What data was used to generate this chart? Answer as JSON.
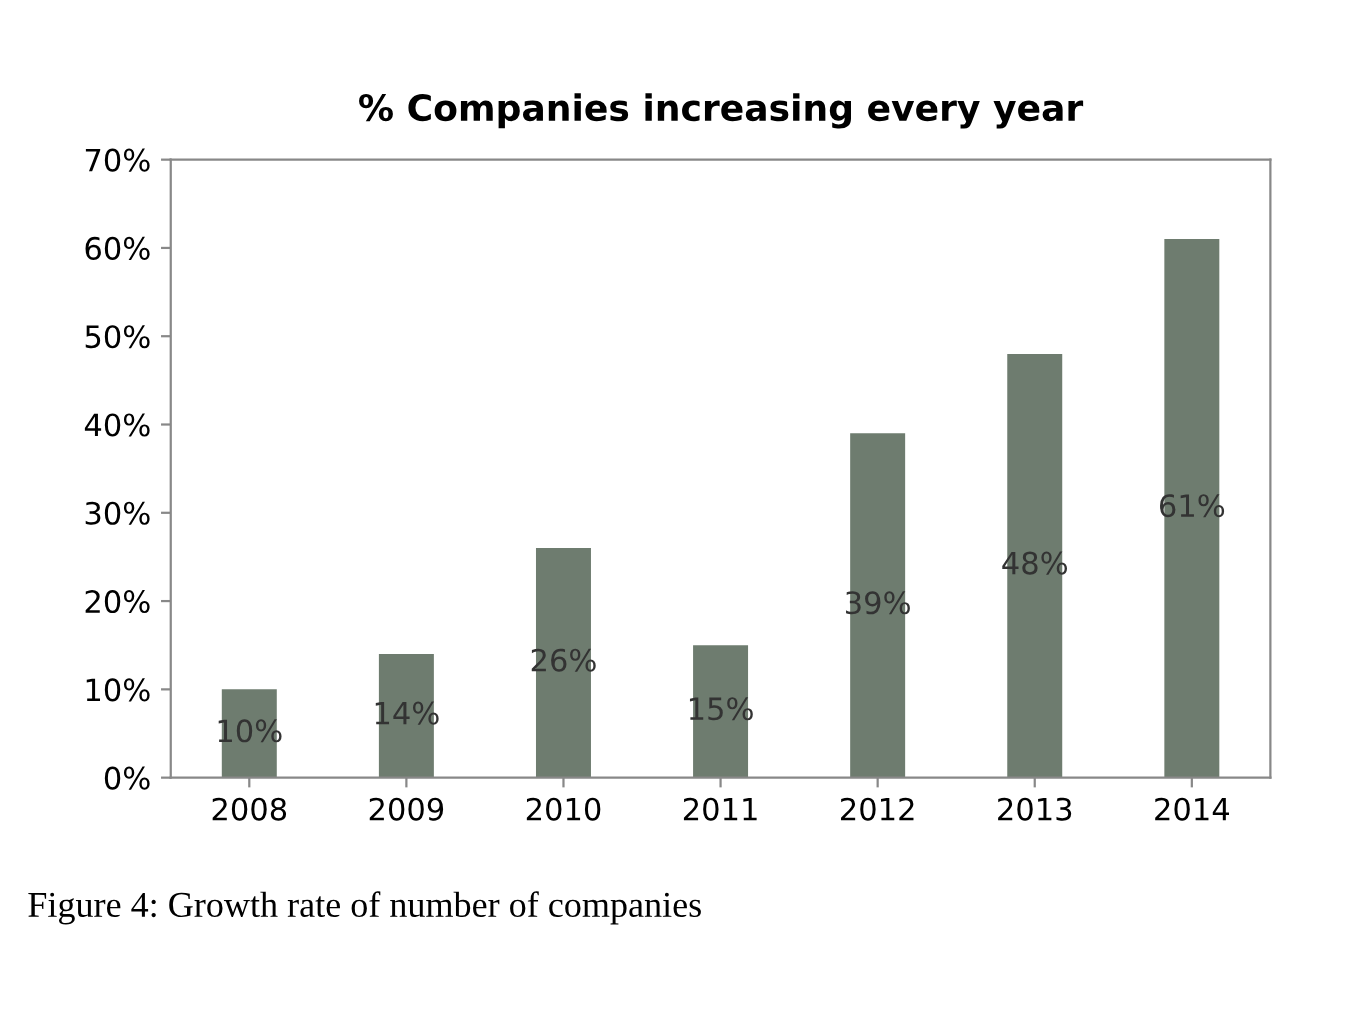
{
  "chart_data": {
    "type": "bar",
    "title": "% Companies increasing every year",
    "categories": [
      "2008",
      "2009",
      "2010",
      "2011",
      "2012",
      "2013",
      "2014"
    ],
    "values": [
      10,
      14,
      26,
      15,
      39,
      48,
      61
    ],
    "value_labels": [
      "10%",
      "14%",
      "26%",
      "15%",
      "39%",
      "48%",
      "61%"
    ],
    "color": "#6e7c6f",
    "ylim": [
      0,
      70
    ],
    "yticks": [
      {
        "value": 0,
        "label": "0%"
      },
      {
        "value": 10,
        "label": "10%"
      },
      {
        "value": 20,
        "label": "20%"
      },
      {
        "value": 30,
        "label": "30%"
      },
      {
        "value": 40,
        "label": "40%"
      },
      {
        "value": 50,
        "label": "50%"
      },
      {
        "value": 60,
        "label": "60%"
      },
      {
        "value": 70,
        "label": "70%"
      }
    ],
    "grid": false,
    "legend": false,
    "annotations": [
      "Figure 4: Growth rate of number of companies"
    ]
  }
}
